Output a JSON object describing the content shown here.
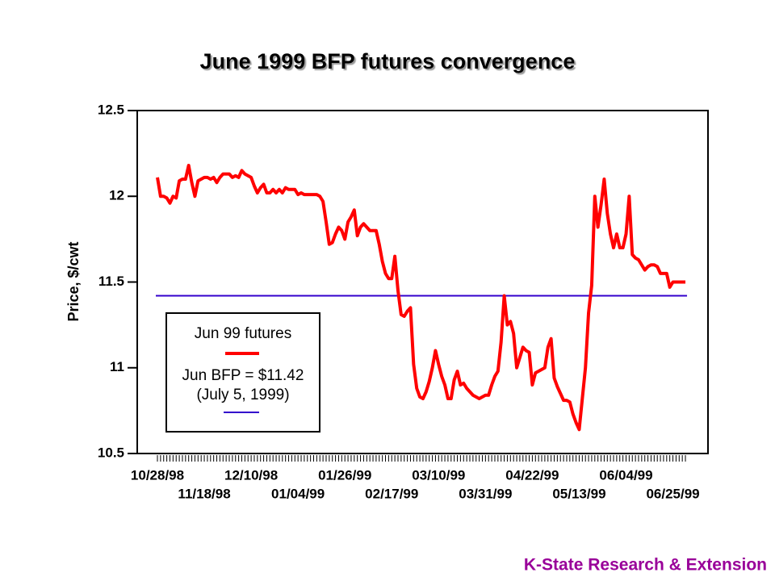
{
  "chart_data": {
    "type": "line",
    "title": "June 1999 BFP futures convergence",
    "y_label": "Price, $/cwt",
    "footer": "K-State Research & Extension",
    "categories": [
      "10/28/98",
      null,
      null,
      null,
      null,
      null,
      null,
      null,
      null,
      null,
      null,
      null,
      null,
      null,
      null,
      "11/18/98",
      null,
      null,
      null,
      null,
      null,
      null,
      null,
      null,
      null,
      null,
      null,
      null,
      null,
      null,
      "12/10/98",
      null,
      null,
      null,
      null,
      null,
      null,
      null,
      null,
      null,
      null,
      null,
      null,
      null,
      null,
      "01/04/99",
      null,
      null,
      null,
      null,
      null,
      null,
      null,
      null,
      null,
      null,
      null,
      null,
      null,
      null,
      "01/26/99",
      null,
      null,
      null,
      null,
      null,
      null,
      null,
      null,
      null,
      null,
      null,
      null,
      null,
      null,
      "02/17/99",
      null,
      null,
      null,
      null,
      null,
      null,
      null,
      null,
      null,
      null,
      null,
      null,
      null,
      null,
      "03/10/99",
      null,
      null,
      null,
      null,
      null,
      null,
      null,
      null,
      null,
      null,
      null,
      null,
      null,
      null,
      "03/31/99",
      null,
      null,
      null,
      null,
      null,
      null,
      null,
      null,
      null,
      null,
      null,
      null,
      null,
      null,
      "04/22/99",
      null,
      null,
      null,
      null,
      null,
      null,
      null,
      null,
      null,
      null,
      null,
      null,
      null,
      null,
      "05/13/99",
      null,
      null,
      null,
      null,
      null,
      null,
      null,
      null,
      null,
      null,
      null,
      null,
      null,
      null,
      "06/04/99",
      null,
      null,
      null,
      null,
      null,
      null,
      null,
      null,
      null,
      null,
      null,
      null,
      null,
      null,
      "06/25/99",
      null,
      null,
      null,
      null
    ],
    "series": [
      {
        "name": "Jun 99 futures",
        "color": "#ff0000",
        "values": [
          12.11,
          12.0,
          12.0,
          11.99,
          11.96,
          12.0,
          11.99,
          12.09,
          12.1,
          12.1,
          12.18,
          12.08,
          12.0,
          12.09,
          12.1,
          12.11,
          12.11,
          12.1,
          12.11,
          12.08,
          12.11,
          12.13,
          12.13,
          12.13,
          12.11,
          12.12,
          12.11,
          12.15,
          12.13,
          12.12,
          12.11,
          12.06,
          12.02,
          12.05,
          12.07,
          12.02,
          12.02,
          12.04,
          12.02,
          12.04,
          12.02,
          12.05,
          12.04,
          12.04,
          12.04,
          12.01,
          12.02,
          12.01,
          12.01,
          12.01,
          12.01,
          12.01,
          12.0,
          11.97,
          11.85,
          11.72,
          11.73,
          11.78,
          11.82,
          11.8,
          11.75,
          11.85,
          11.88,
          11.92,
          11.77,
          11.82,
          11.84,
          11.82,
          11.8,
          11.8,
          11.8,
          11.72,
          11.62,
          11.55,
          11.52,
          11.52,
          11.65,
          11.45,
          11.31,
          11.3,
          11.33,
          11.35,
          11.02,
          10.88,
          10.83,
          10.82,
          10.86,
          10.92,
          11.0,
          11.1,
          11.02,
          10.95,
          10.9,
          10.82,
          10.82,
          10.93,
          10.98,
          10.9,
          10.91,
          10.88,
          10.86,
          10.84,
          10.83,
          10.82,
          10.83,
          10.84,
          10.84,
          10.9,
          10.95,
          10.98,
          11.15,
          11.42,
          11.25,
          11.27,
          11.2,
          11.0,
          11.06,
          11.12,
          11.1,
          11.09,
          10.9,
          10.97,
          10.98,
          10.99,
          11.0,
          11.12,
          11.17,
          10.94,
          10.89,
          10.85,
          10.81,
          10.81,
          10.8,
          10.73,
          10.68,
          10.64,
          10.82,
          11.0,
          11.32,
          11.48,
          12.0,
          11.82,
          11.95,
          12.1,
          11.9,
          11.78,
          11.7,
          11.78,
          11.7,
          11.7,
          11.78,
          12.0,
          11.66,
          11.64,
          11.63,
          11.6,
          11.57,
          11.59,
          11.6,
          11.6,
          11.59,
          11.55,
          11.55,
          11.55,
          11.47,
          11.5,
          11.5,
          11.5,
          11.5,
          11.5
        ]
      }
    ],
    "reference_line": {
      "value": 11.42,
      "color": "#3300cc",
      "label": "Jun BFP = $11.42",
      "note": "(July 5, 1999)"
    },
    "ylim": [
      10.5,
      12.5
    ],
    "yticks": [
      10.5,
      11,
      11.5,
      12,
      12.5
    ]
  }
}
